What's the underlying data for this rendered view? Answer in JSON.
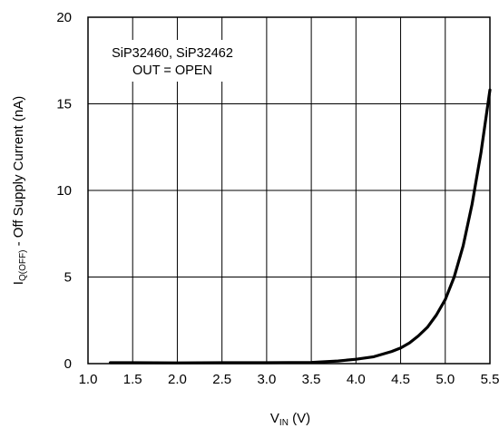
{
  "chart_data": {
    "type": "line",
    "title": "",
    "xlabel": {
      "main": "V",
      "sub": "IN",
      "unit": " (V)"
    },
    "ylabel": {
      "main": "I",
      "sub": "Q(OFF)",
      "rest": " - Off Supply Current (nA)"
    },
    "xlim": [
      1.0,
      5.5
    ],
    "ylim": [
      0,
      20
    ],
    "x_ticks": [
      "1.0",
      "1.5",
      "2.0",
      "2.5",
      "3.0",
      "3.5",
      "4.0",
      "4.5",
      "5.0",
      "5.5"
    ],
    "y_ticks": [
      "0",
      "5",
      "10",
      "15",
      "20"
    ],
    "grid": true,
    "annotation": [
      "SiP32460, SiP32462",
      "OUT = OPEN"
    ],
    "series": [
      {
        "x": [
          1.25,
          1.5,
          2.0,
          2.5,
          3.0,
          3.5,
          3.8,
          4.0,
          4.2,
          4.4,
          4.5,
          4.6,
          4.7,
          4.8,
          4.9,
          5.0,
          5.1,
          5.2,
          5.3,
          5.4,
          5.5
        ],
        "y": [
          0.05,
          0.05,
          0.04,
          0.05,
          0.05,
          0.07,
          0.15,
          0.25,
          0.4,
          0.7,
          0.9,
          1.2,
          1.6,
          2.1,
          2.8,
          3.7,
          5.0,
          6.8,
          9.2,
          12.2,
          15.8
        ]
      }
    ]
  },
  "colors": {
    "line": "#000000",
    "grid": "#000000",
    "frame": "#000000"
  }
}
